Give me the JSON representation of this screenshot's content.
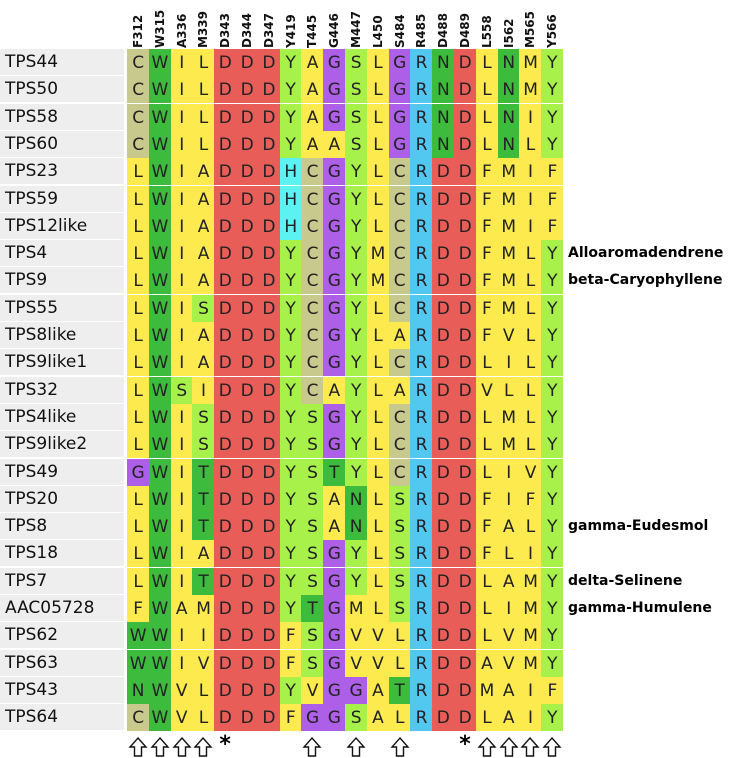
{
  "columns": [
    "F312",
    "W315",
    "A336",
    "M339",
    "D343",
    "D344",
    "D347",
    "Y419",
    "T445",
    "G446",
    "M447",
    "L450",
    "S484",
    "R485",
    "D488",
    "D489",
    "L558",
    "I562",
    "M565",
    "Y566"
  ],
  "rows": [
    {
      "name": "TPS44",
      "seq": "CWILDDDYAGSLGRNDLNMY",
      "product": ""
    },
    {
      "name": "TPS50",
      "seq": "CWILDDDYAGSLGRNDLNMY",
      "product": ""
    },
    {
      "name": "TPS58",
      "seq": "CWILDDDYAGSLGRNDLNIY",
      "product": ""
    },
    {
      "name": "TPS60",
      "seq": "CWILDDDYAASLGRNDLNLY",
      "product": ""
    },
    {
      "name": "TPS23",
      "seq": "LWIADDDHCGYLCRDDFMIF",
      "product": ""
    },
    {
      "name": "TPS59",
      "seq": "LWIADDDHCGYLCRDDFMIF",
      "product": ""
    },
    {
      "name": "TPS12like",
      "seq": "LWIADDDHCGYLCRDDFMIF",
      "product": ""
    },
    {
      "name": "TPS4",
      "seq": "LWIADDDYCGYMCRDDFMLY",
      "product": "Alloaromadendrene"
    },
    {
      "name": "TPS9",
      "seq": "LWIADDDYCGYMCRDDFMLY",
      "product": "beta-Caryophyllene"
    },
    {
      "name": "TPS55",
      "seq": "LWISDDDYCGYLCRDDFMLY",
      "product": ""
    },
    {
      "name": "TPS8like",
      "seq": "LWIADDDYCGYLARDDFVLY",
      "product": ""
    },
    {
      "name": "TPS9like1",
      "seq": "LWIADDDYCGYLCRDDLILY",
      "product": ""
    },
    {
      "name": "TPS32",
      "seq": "LWSIDDDYCAYLARDDVLLY",
      "product": ""
    },
    {
      "name": "TPS4like",
      "seq": "LWISDDDYSGYLCRDDLMLY",
      "product": ""
    },
    {
      "name": "TPS9like2",
      "seq": "LWISDDDYSGYLCRDDLMLY",
      "product": ""
    },
    {
      "name": "TPS49",
      "seq": "GWITDDDYSTYLCRDDLIVY",
      "product": ""
    },
    {
      "name": "TPS20",
      "seq": "LWITDDDYSANLSRDDFIFY",
      "product": ""
    },
    {
      "name": "TPS8",
      "seq": "LWITDDDYSANLSRDDFALY",
      "product": "gamma-Eudesmol"
    },
    {
      "name": "TPS18",
      "seq": "LWIADDDYSGYLSRDDFLIY",
      "product": ""
    },
    {
      "name": "TPS7",
      "seq": "LWITDDDYSGYLSRDDLAMY",
      "product": "delta-Selinene"
    },
    {
      "name": "AAC05728",
      "seq": "FWAMDDDYTGMLSRDDLIMY",
      "product": "gamma-Humulene"
    },
    {
      "name": "TPS62",
      "seq": "WWIIDDDFSGVVLRDDLVMY",
      "product": ""
    },
    {
      "name": "TPS63",
      "seq": "WWIVDDDFSGVVLRDDAVMY",
      "product": ""
    },
    {
      "name": "TPS43",
      "seq": "NWVLDDDYVGGATRDDMAIF",
      "product": ""
    },
    {
      "name": "TPS64",
      "seq": "CWVLDDDFGGSALRDDLAIY",
      "product": ""
    }
  ],
  "markers": [
    "arrow",
    "arrow",
    "arrow",
    "arrow",
    "star",
    "",
    "",
    "",
    "arrow",
    "",
    "arrow",
    "",
    "arrow",
    "",
    "",
    "star",
    "arrow",
    "arrow",
    "arrow",
    "arrow"
  ],
  "residue_colors": {
    "C": "#c8c98c",
    "W": "#3dbb3d",
    "I": "#fcea4e",
    "L": "#fcea4e",
    "A": "#fcea4e",
    "M": "#fcea4e",
    "V": "#fcea4e",
    "F": "#fcea4e",
    "D": "#e85d58",
    "Y": "#a8f04a",
    "H": "#5cf2f2",
    "G": "#ad5fe8",
    "S": "#a8f04a",
    "N": "#3dbb3d",
    "T": "#3dbb3d",
    "R": "#52c7f0"
  },
  "cell_overrides": {
    "0-12": "#ad5fe8",
    "1-12": "#ad5fe8",
    "2-12": "#ad5fe8",
    "3-12": "#ad5fe8",
    "0-8": "#fcea4e",
    "1-8": "#fcea4e",
    "2-8": "#fcea4e",
    "3-8": "#fcea4e",
    "0-10": "#a8f04a",
    "1-10": "#a8f04a",
    "2-10": "#a8f04a",
    "3-10": "#a8f04a",
    "4-8": "#c8c98c",
    "5-8": "#c8c98c",
    "6-8": "#c8c98c",
    "7-8": "#c8c98c",
    "8-8": "#c8c98c",
    "9-8": "#c8c98c",
    "10-8": "#c8c98c",
    "11-8": "#c8c98c",
    "12-8": "#c8c98c",
    "4-12": "#c8c98c",
    "5-12": "#c8c98c",
    "6-12": "#c8c98c",
    "7-12": "#c8c98c",
    "8-12": "#c8c98c",
    "9-12": "#c8c98c",
    "11-12": "#c8c98c",
    "13-12": "#c8c98c",
    "14-12": "#c8c98c",
    "15-12": "#c8c98c",
    "24-0": "#c8c98c"
  }
}
